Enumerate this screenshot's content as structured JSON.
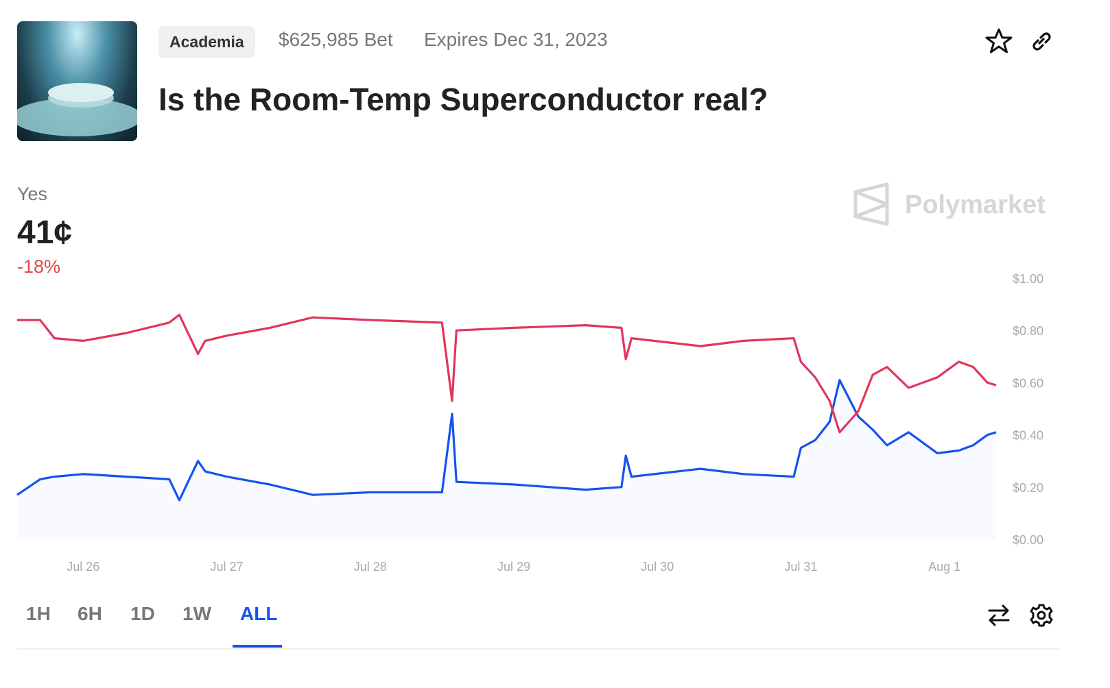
{
  "header": {
    "category": "Academia",
    "volume": "$625,985 Bet",
    "expires": "Expires Dec 31, 2023",
    "title": "Is the Room-Temp Superconductor real?"
  },
  "outcome": {
    "label": "Yes",
    "price": "41¢",
    "change": "-18%"
  },
  "brand": "Polymarket",
  "ranges": {
    "options": [
      "1H",
      "6H",
      "1D",
      "1W",
      "ALL"
    ],
    "active": 4
  },
  "chart_data": {
    "type": "line",
    "x": [
      -0.46,
      -0.3,
      -0.2,
      0,
      0.3,
      0.6,
      0.67,
      0.8,
      0.85,
      1.0,
      1.3,
      1.6,
      2.0,
      2.5,
      2.57,
      2.6,
      3.0,
      3.5,
      3.75,
      3.78,
      3.82,
      4.3,
      4.6,
      4.95,
      5.0,
      5.1,
      5.2,
      5.27,
      5.4,
      5.5,
      5.6,
      5.75,
      5.95,
      6.1,
      6.2,
      6.3,
      6.36
    ],
    "series": [
      {
        "name": "Yes",
        "color": "#1652f0",
        "area": true,
        "values": [
          0.17,
          0.23,
          0.24,
          0.25,
          0.24,
          0.23,
          0.15,
          0.3,
          0.26,
          0.24,
          0.21,
          0.17,
          0.18,
          0.18,
          0.48,
          0.22,
          0.21,
          0.19,
          0.2,
          0.32,
          0.24,
          0.27,
          0.25,
          0.24,
          0.35,
          0.38,
          0.45,
          0.61,
          0.47,
          0.42,
          0.36,
          0.41,
          0.33,
          0.34,
          0.36,
          0.4,
          0.41
        ]
      },
      {
        "color": "#e0365c",
        "values": [
          0.84,
          0.84,
          0.77,
          0.76,
          0.79,
          0.83,
          0.86,
          0.71,
          0.76,
          0.78,
          0.81,
          0.85,
          0.84,
          0.83,
          0.53,
          0.8,
          0.81,
          0.82,
          0.81,
          0.69,
          0.77,
          0.74,
          0.76,
          0.77,
          0.68,
          0.62,
          0.53,
          0.41,
          0.49,
          0.63,
          0.66,
          0.58,
          0.62,
          0.68,
          0.66,
          0.6,
          0.59
        ]
      }
    ],
    "xlim": [
      -0.46,
      6.36
    ],
    "xticks": [
      {
        "value": 0,
        "label": "Jul 26"
      },
      {
        "value": 1,
        "label": "Jul 27"
      },
      {
        "value": 2,
        "label": "Jul 28"
      },
      {
        "value": 3,
        "label": "Jul 29"
      },
      {
        "value": 4,
        "label": "Jul 30"
      },
      {
        "value": 5,
        "label": "Jul 31"
      },
      {
        "value": 6,
        "label": "Aug 1"
      }
    ],
    "ylim": [
      0,
      1
    ],
    "yticks": [
      {
        "value": 0,
        "label": "$0.00"
      },
      {
        "value": 0.2,
        "label": "$0.20"
      },
      {
        "value": 0.4,
        "label": "$0.40"
      },
      {
        "value": 0.6,
        "label": "$0.60"
      },
      {
        "value": 0.8,
        "label": "$0.80"
      },
      {
        "value": 1,
        "label": "$1.00"
      }
    ],
    "grid": false
  }
}
